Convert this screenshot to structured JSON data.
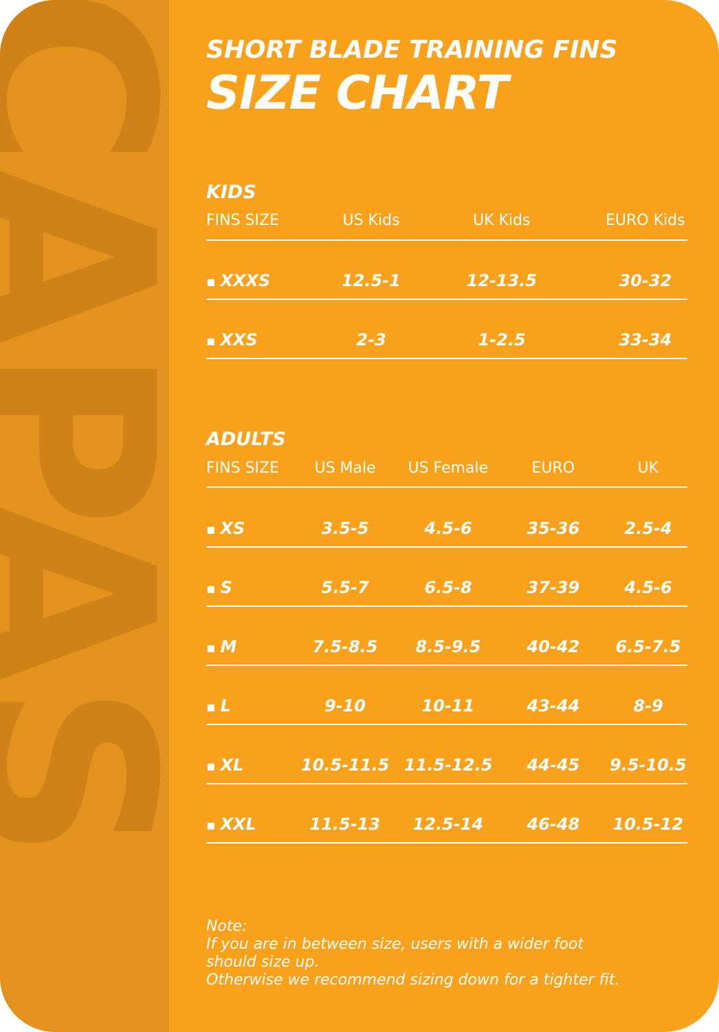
{
  "header": {
    "subtitle": "SHORT BLADE TRAINING FINS",
    "title": "SIZE CHART"
  },
  "watermark": "CAPAS",
  "kids": {
    "title": "KIDS",
    "columns": [
      "FINS SIZE",
      "US Kids",
      "UK Kids",
      "EURO Kids"
    ],
    "rows": [
      [
        "XXXS",
        "12.5-1",
        "12-13.5",
        "30-32"
      ],
      [
        "XXS",
        "2-3",
        "1-2.5",
        "33-34"
      ]
    ]
  },
  "adults": {
    "title": "ADULTS",
    "columns": [
      "FINS SIZE",
      "US Male",
      "US Female",
      "EURO",
      "UK"
    ],
    "rows": [
      [
        "XS",
        "3.5-5",
        "4.5-6",
        "35-36",
        "2.5-4"
      ],
      [
        "S",
        "5.5-7",
        "6.5-8",
        "37-39",
        "4.5-6"
      ],
      [
        "M",
        "7.5-8.5",
        "8.5-9.5",
        "40-42",
        "6.5-7.5"
      ],
      [
        "L",
        "9-10",
        "10-11",
        "43-44",
        "8-9"
      ],
      [
        "XL",
        "10.5-11.5",
        "11.5-12.5",
        "44-45",
        "9.5-10.5"
      ],
      [
        "XXL",
        "11.5-13",
        "12.5-14",
        "46-48",
        "10.5-12"
      ]
    ]
  },
  "note": {
    "lines": [
      "Note:",
      "If you are in between size, users with a wider foot",
      "should size up.",
      "Otherwise we recommend sizing down for a tighter fit."
    ]
  }
}
